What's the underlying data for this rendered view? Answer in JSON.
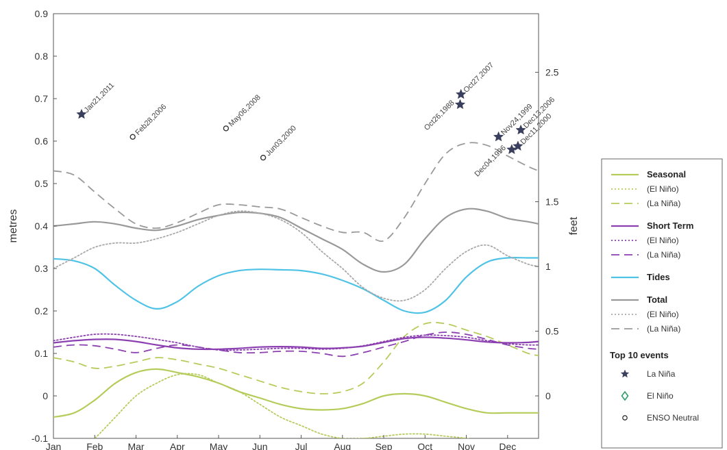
{
  "chart_data": {
    "type": "line",
    "xlabel": "",
    "ylabel": "metres",
    "y2label": "feet",
    "x_ticks": [
      "Jan",
      "Feb",
      "Mar",
      "Apr",
      "May",
      "Jun",
      "Jul",
      "Aug",
      "Sep",
      "Oct",
      "Nov",
      "Dec"
    ],
    "xlim": [
      0,
      11.75
    ],
    "ylim": [
      -0.1,
      0.9
    ],
    "y_ticks": [
      "-0.1",
      "0",
      "0.1",
      "0.2",
      "0.3",
      "0.4",
      "0.5",
      "0.6",
      "0.7",
      "0.8",
      "0.9"
    ],
    "y2_ticks": [
      "0",
      "0.5",
      "1",
      "1.5",
      "2.5"
    ],
    "grid": false,
    "legend_position": "right",
    "x": [
      0,
      0.5,
      1,
      1.5,
      2,
      2.5,
      3,
      3.5,
      4,
      4.5,
      5,
      5.5,
      6,
      6.5,
      7,
      7.5,
      8,
      8.5,
      9,
      9.5,
      10,
      10.5,
      11,
      11.5,
      11.75
    ],
    "series": [
      {
        "name": "Seasonal",
        "group": "Seasonal",
        "style": "solid",
        "color": "#b5cc5a",
        "values": [
          -0.05,
          -0.04,
          -0.01,
          0.03,
          0.055,
          0.063,
          0.055,
          0.045,
          0.03,
          0.01,
          -0.005,
          -0.02,
          -0.03,
          -0.033,
          -0.03,
          -0.018,
          0.0,
          0.005,
          0.0,
          -0.015,
          -0.03,
          -0.04,
          -0.04,
          -0.04,
          -0.04
        ]
      },
      {
        "name": "(El Niño)",
        "group": "Seasonal",
        "style": "dotted",
        "color": "#b5cc5a",
        "values": [
          -0.17,
          -0.14,
          -0.1,
          -0.05,
          0.0,
          0.03,
          0.05,
          0.05,
          0.03,
          0.01,
          -0.02,
          -0.05,
          -0.07,
          -0.09,
          -0.1,
          -0.1,
          -0.095,
          -0.09,
          -0.09,
          -0.095,
          -0.1,
          -0.11,
          -0.12,
          -0.13,
          -0.13
        ]
      },
      {
        "name": "(La Niña)",
        "group": "Seasonal",
        "style": "dashed",
        "color": "#b5cc5a",
        "values": [
          0.09,
          0.08,
          0.065,
          0.07,
          0.08,
          0.09,
          0.085,
          0.075,
          0.065,
          0.05,
          0.035,
          0.02,
          0.01,
          0.005,
          0.01,
          0.03,
          0.08,
          0.14,
          0.17,
          0.17,
          0.155,
          0.14,
          0.12,
          0.1,
          0.095
        ]
      },
      {
        "name": "Short Term",
        "group": "Short Term",
        "style": "solid",
        "color": "#8b3fb0",
        "values": [
          0.125,
          0.13,
          0.133,
          0.133,
          0.128,
          0.12,
          0.113,
          0.11,
          0.11,
          0.112,
          0.115,
          0.116,
          0.115,
          0.112,
          0.113,
          0.117,
          0.126,
          0.135,
          0.138,
          0.136,
          0.132,
          0.127,
          0.125,
          0.126,
          0.128
        ]
      },
      {
        "name": "(El Niño)",
        "group": "Short Term",
        "style": "dotted",
        "color": "#8b3fb0",
        "values": [
          0.13,
          0.138,
          0.145,
          0.145,
          0.14,
          0.133,
          0.125,
          0.115,
          0.108,
          0.108,
          0.11,
          0.112,
          0.112,
          0.11,
          0.112,
          0.118,
          0.128,
          0.138,
          0.143,
          0.142,
          0.138,
          0.13,
          0.123,
          0.12,
          0.12
        ]
      },
      {
        "name": "(La Niña)",
        "group": "Short Term",
        "style": "dashed",
        "color": "#8b3fb0",
        "values": [
          0.115,
          0.12,
          0.118,
          0.11,
          0.102,
          0.112,
          0.12,
          0.115,
          0.108,
          0.102,
          0.102,
          0.105,
          0.105,
          0.1,
          0.093,
          0.102,
          0.115,
          0.128,
          0.143,
          0.15,
          0.145,
          0.133,
          0.12,
          0.112,
          0.11
        ]
      },
      {
        "name": "Tides",
        "group": "Tides",
        "style": "solid",
        "color": "#4fc3e6",
        "values": [
          0.323,
          0.318,
          0.3,
          0.26,
          0.225,
          0.205,
          0.222,
          0.258,
          0.283,
          0.295,
          0.298,
          0.297,
          0.295,
          0.287,
          0.272,
          0.252,
          0.225,
          0.2,
          0.197,
          0.225,
          0.28,
          0.315,
          0.325,
          0.325,
          0.325
        ]
      },
      {
        "name": "Total",
        "group": "Total",
        "style": "solid",
        "color": "#999999",
        "values": [
          0.4,
          0.405,
          0.41,
          0.405,
          0.395,
          0.39,
          0.4,
          0.415,
          0.425,
          0.432,
          0.43,
          0.42,
          0.395,
          0.37,
          0.345,
          0.31,
          0.292,
          0.31,
          0.37,
          0.42,
          0.44,
          0.435,
          0.418,
          0.41,
          0.405
        ]
      },
      {
        "name": "(El Niño)",
        "group": "Total",
        "style": "dotted",
        "color": "#a8a8a8",
        "values": [
          0.3,
          0.325,
          0.35,
          0.36,
          0.36,
          0.37,
          0.385,
          0.405,
          0.425,
          0.435,
          0.43,
          0.415,
          0.385,
          0.34,
          0.3,
          0.255,
          0.23,
          0.225,
          0.25,
          0.3,
          0.34,
          0.355,
          0.33,
          0.31,
          0.305
        ]
      },
      {
        "name": "(La Niña)",
        "group": "Total",
        "style": "dashed",
        "color": "#999999",
        "values": [
          0.53,
          0.52,
          0.48,
          0.44,
          0.405,
          0.395,
          0.408,
          0.43,
          0.45,
          0.45,
          0.445,
          0.44,
          0.42,
          0.4,
          0.385,
          0.385,
          0.365,
          0.42,
          0.5,
          0.57,
          0.595,
          0.59,
          0.565,
          0.54,
          0.53
        ]
      }
    ],
    "events": [
      {
        "label": "Jan21,2011",
        "x": 0.68,
        "y": 0.663,
        "marker": "star",
        "label_side": "right"
      },
      {
        "label": "Feb28,2006",
        "x": 1.92,
        "y": 0.61,
        "marker": "circle",
        "label_side": "right"
      },
      {
        "label": "May06,2008",
        "x": 4.18,
        "y": 0.63,
        "marker": "circle",
        "label_side": "right"
      },
      {
        "label": "Jun03,2000",
        "x": 5.08,
        "y": 0.561,
        "marker": "circle",
        "label_side": "right"
      },
      {
        "label": "Oct27,2007",
        "x": 9.87,
        "y": 0.71,
        "marker": "star",
        "label_side": "right"
      },
      {
        "label": "Oct26,1988",
        "x": 9.85,
        "y": 0.686,
        "marker": "star",
        "label_side": "left"
      },
      {
        "label": "Nov24,1999",
        "x": 10.78,
        "y": 0.61,
        "marker": "star",
        "label_side": "right"
      },
      {
        "label": "Dec13,2006",
        "x": 11.32,
        "y": 0.626,
        "marker": "star",
        "label_side": "right"
      },
      {
        "label": "Dec11,2000",
        "x": 11.25,
        "y": 0.588,
        "marker": "star",
        "label_side": "right"
      },
      {
        "label": "Dec04,1996",
        "x": 11.1,
        "y": 0.58,
        "marker": "star",
        "label_side": "left"
      }
    ],
    "legend": {
      "groups": [
        {
          "items": [
            {
              "label": "Seasonal",
              "bold": true
            },
            {
              "label": "(El Niño)"
            },
            {
              "label": "(La Niña)"
            }
          ]
        },
        {
          "items": [
            {
              "label": "Short Term",
              "bold": true
            },
            {
              "label": "(El Niño)"
            },
            {
              "label": "(La Niña)"
            }
          ]
        },
        {
          "items": [
            {
              "label": "Tides",
              "bold": true
            }
          ]
        },
        {
          "items": [
            {
              "label": "Total",
              "bold": true
            },
            {
              "label": "(El Niño)"
            },
            {
              "label": "(La Niña)"
            }
          ]
        }
      ],
      "events_title": "Top 10 events",
      "event_markers": [
        {
          "label": "La Niña",
          "marker": "star",
          "color": "#3a3f5e"
        },
        {
          "label": "El Niño",
          "marker": "diamond",
          "color": "#2e9e6a"
        },
        {
          "label": "ENSO Neutral",
          "marker": "circle",
          "color": "#333333"
        }
      ]
    }
  }
}
